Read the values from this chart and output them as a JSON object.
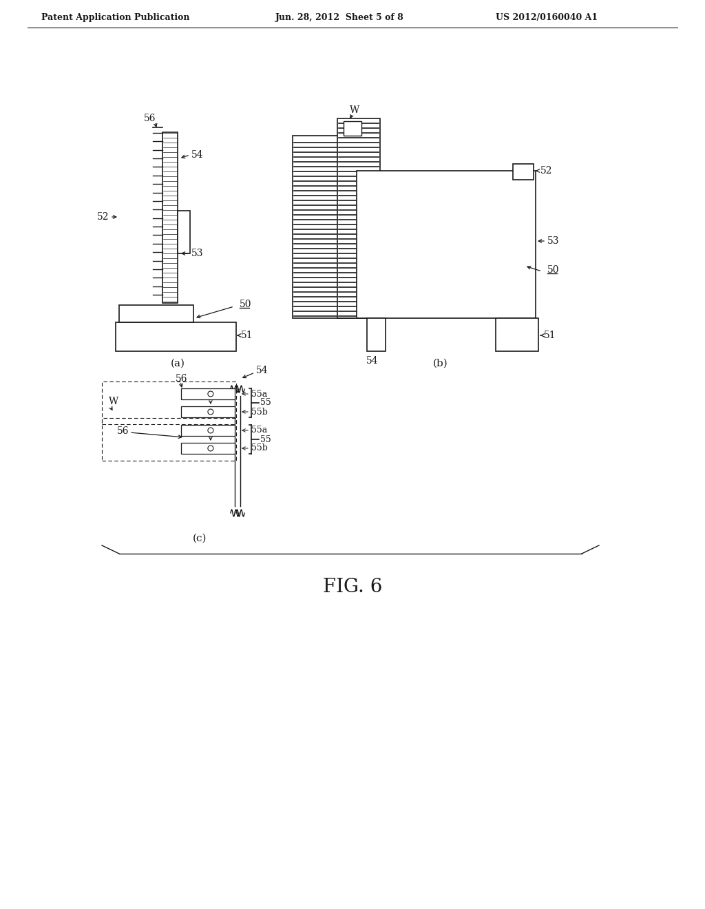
{
  "header_left": "Patent Application Publication",
  "header_mid": "Jun. 28, 2012  Sheet 5 of 8",
  "header_right": "US 2012/0160040 A1",
  "figure_label": "FIG. 6",
  "bg_color": "#ffffff",
  "line_color": "#1a1a1a"
}
